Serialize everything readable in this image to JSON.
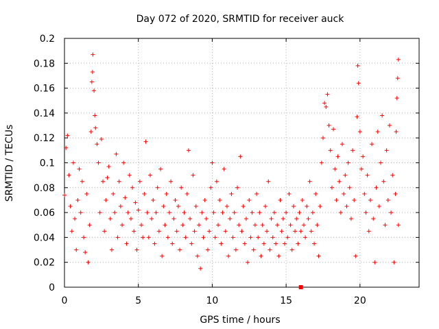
{
  "chart_data": {
    "type": "scatter",
    "title": "Day 072 of 2020, SRMTID for receiver auck",
    "xlabel": "GPS time / hours",
    "ylabel": "SRMTID / TECUs",
    "xlim": [
      0,
      24
    ],
    "ylim": [
      0,
      0.2
    ],
    "grid": true,
    "x_ticks": [
      0,
      5,
      10,
      15,
      20
    ],
    "x_tick_labels": [
      "0",
      "5",
      "10",
      "15",
      "20"
    ],
    "y_ticks": [
      0,
      0.02,
      0.04,
      0.06,
      0.08,
      0.1,
      0.12,
      0.14,
      0.16,
      0.18,
      0.2
    ],
    "y_tick_labels": [
      "0",
      "0.02",
      "0.04",
      "0.06",
      "0.08",
      "0.1",
      "0.12",
      "0.14",
      "0.16",
      "0.18",
      "0.2"
    ],
    "marker": "plus",
    "color": "#ff0000",
    "series": [
      {
        "name": "SRMTID",
        "points": [
          [
            0.0,
            0.074
          ],
          [
            0.1,
            0.112
          ],
          [
            0.2,
            0.122
          ],
          [
            0.3,
            0.09
          ],
          [
            0.4,
            0.065
          ],
          [
            0.5,
            0.045
          ],
          [
            0.6,
            0.1
          ],
          [
            0.7,
            0.055
          ],
          [
            0.8,
            0.03
          ],
          [
            0.9,
            0.07
          ],
          [
            1.0,
            0.095
          ],
          [
            1.1,
            0.06
          ],
          [
            1.2,
            0.085
          ],
          [
            1.3,
            0.04
          ],
          [
            1.4,
            0.028
          ],
          [
            1.5,
            0.075
          ],
          [
            1.6,
            0.02
          ],
          [
            1.7,
            0.05
          ],
          [
            1.8,
            0.125
          ],
          [
            1.85,
            0.165
          ],
          [
            1.9,
            0.173
          ],
          [
            1.92,
            0.187
          ],
          [
            2.0,
            0.158
          ],
          [
            2.05,
            0.138
          ],
          [
            2.1,
            0.128
          ],
          [
            2.2,
            0.115
          ],
          [
            2.3,
            0.1
          ],
          [
            2.4,
            0.06
          ],
          [
            2.5,
            0.119
          ],
          [
            2.6,
            0.085
          ],
          [
            2.7,
            0.045
          ],
          [
            2.8,
            0.07
          ],
          [
            2.9,
            0.088
          ],
          [
            3.0,
            0.097
          ],
          [
            3.1,
            0.055
          ],
          [
            3.2,
            0.03
          ],
          [
            3.3,
            0.075
          ],
          [
            3.4,
            0.06
          ],
          [
            3.5,
            0.107
          ],
          [
            3.6,
            0.04
          ],
          [
            3.7,
            0.085
          ],
          [
            3.8,
            0.065
          ],
          [
            3.9,
            0.05
          ],
          [
            4.0,
            0.1
          ],
          [
            4.1,
            0.072
          ],
          [
            4.2,
            0.035
          ],
          [
            4.3,
            0.06
          ],
          [
            4.4,
            0.09
          ],
          [
            4.5,
            0.055
          ],
          [
            4.6,
            0.08
          ],
          [
            4.7,
            0.045
          ],
          [
            4.8,
            0.068
          ],
          [
            4.9,
            0.03
          ],
          [
            5.0,
            0.062
          ],
          [
            5.1,
            0.085
          ],
          [
            5.2,
            0.05
          ],
          [
            5.3,
            0.04
          ],
          [
            5.4,
            0.075
          ],
          [
            5.5,
            0.117
          ],
          [
            5.6,
            0.06
          ],
          [
            5.7,
            0.04
          ],
          [
            5.8,
            0.09
          ],
          [
            5.9,
            0.055
          ],
          [
            6.0,
            0.07
          ],
          [
            6.1,
            0.035
          ],
          [
            6.2,
            0.06
          ],
          [
            6.3,
            0.08
          ],
          [
            6.4,
            0.045
          ],
          [
            6.5,
            0.095
          ],
          [
            6.6,
            0.025
          ],
          [
            6.7,
            0.065
          ],
          [
            6.8,
            0.05
          ],
          [
            6.9,
            0.075
          ],
          [
            7.0,
            0.04
          ],
          [
            7.1,
            0.06
          ],
          [
            7.2,
            0.085
          ],
          [
            7.3,
            0.035
          ],
          [
            7.4,
            0.055
          ],
          [
            7.5,
            0.07
          ],
          [
            7.6,
            0.045
          ],
          [
            7.7,
            0.065
          ],
          [
            7.8,
            0.03
          ],
          [
            7.9,
            0.08
          ],
          [
            8.0,
            0.05
          ],
          [
            8.1,
            0.06
          ],
          [
            8.2,
            0.04
          ],
          [
            8.3,
            0.075
          ],
          [
            8.4,
            0.11
          ],
          [
            8.5,
            0.055
          ],
          [
            8.6,
            0.035
          ],
          [
            8.7,
            0.09
          ],
          [
            8.8,
            0.045
          ],
          [
            8.9,
            0.065
          ],
          [
            9.0,
            0.025
          ],
          [
            9.1,
            0.05
          ],
          [
            9.2,
            0.015
          ],
          [
            9.3,
            0.06
          ],
          [
            9.4,
            0.04
          ],
          [
            9.5,
            0.07
          ],
          [
            9.6,
            0.055
          ],
          [
            9.7,
            0.03
          ],
          [
            9.8,
            0.045
          ],
          [
            9.9,
            0.08
          ],
          [
            10.0,
            0.1
          ],
          [
            10.1,
            0.06
          ],
          [
            10.2,
            0.04
          ],
          [
            10.3,
            0.085
          ],
          [
            10.4,
            0.05
          ],
          [
            10.5,
            0.07
          ],
          [
            10.6,
            0.035
          ],
          [
            10.7,
            0.06
          ],
          [
            10.8,
            0.095
          ],
          [
            10.9,
            0.045
          ],
          [
            11.0,
            0.065
          ],
          [
            11.1,
            0.025
          ],
          [
            11.2,
            0.055
          ],
          [
            11.3,
            0.075
          ],
          [
            11.4,
            0.04
          ],
          [
            11.5,
            0.06
          ],
          [
            11.6,
            0.03
          ],
          [
            11.7,
            0.08
          ],
          [
            11.8,
            0.05
          ],
          [
            11.9,
            0.105
          ],
          [
            12.0,
            0.045
          ],
          [
            12.1,
            0.065
          ],
          [
            12.2,
            0.035
          ],
          [
            12.3,
            0.055
          ],
          [
            12.4,
            0.02
          ],
          [
            12.5,
            0.07
          ],
          [
            12.6,
            0.04
          ],
          [
            12.7,
            0.06
          ],
          [
            12.8,
            0.03
          ],
          [
            12.9,
            0.05
          ],
          [
            13.0,
            0.075
          ],
          [
            13.1,
            0.04
          ],
          [
            13.2,
            0.06
          ],
          [
            13.3,
            0.025
          ],
          [
            13.4,
            0.05
          ],
          [
            13.5,
            0.035
          ],
          [
            13.6,
            0.065
          ],
          [
            13.7,
            0.045
          ],
          [
            13.8,
            0.085
          ],
          [
            13.9,
            0.03
          ],
          [
            14.0,
            0.055
          ],
          [
            14.1,
            0.04
          ],
          [
            14.2,
            0.06
          ],
          [
            14.3,
            0.035
          ],
          [
            14.4,
            0.05
          ],
          [
            14.5,
            0.025
          ],
          [
            14.6,
            0.07
          ],
          [
            14.7,
            0.045
          ],
          [
            14.8,
            0.055
          ],
          [
            14.9,
            0.035
          ],
          [
            15.0,
            0.06
          ],
          [
            15.1,
            0.04
          ],
          [
            15.2,
            0.075
          ],
          [
            15.3,
            0.05
          ],
          [
            15.4,
            0.03
          ],
          [
            15.5,
            0.065
          ],
          [
            15.6,
            0.045
          ],
          [
            15.7,
            0.055
          ],
          [
            15.8,
            0.035
          ],
          [
            15.9,
            0.06
          ],
          [
            16.0,
            0.045
          ],
          [
            16.1,
            0.07
          ],
          [
            16.2,
            0.05
          ],
          [
            16.3,
            0.04
          ],
          [
            16.4,
            0.065
          ],
          [
            16.5,
            0.055
          ],
          [
            16.6,
            0.085
          ],
          [
            16.7,
            0.045
          ],
          [
            16.8,
            0.06
          ],
          [
            16.9,
            0.035
          ],
          [
            17.0,
            0.075
          ],
          [
            17.1,
            0.05
          ],
          [
            17.2,
            0.025
          ],
          [
            17.3,
            0.065
          ],
          [
            17.4,
            0.1
          ],
          [
            17.5,
            0.12
          ],
          [
            17.6,
            0.148
          ],
          [
            17.7,
            0.145
          ],
          [
            17.8,
            0.155
          ],
          [
            17.9,
            0.13
          ],
          [
            18.0,
            0.11
          ],
          [
            18.1,
            0.08
          ],
          [
            18.2,
            0.127
          ],
          [
            18.3,
            0.095
          ],
          [
            18.4,
            0.07
          ],
          [
            18.5,
            0.105
          ],
          [
            18.6,
            0.085
          ],
          [
            18.7,
            0.06
          ],
          [
            18.8,
            0.115
          ],
          [
            18.9,
            0.075
          ],
          [
            19.0,
            0.09
          ],
          [
            19.1,
            0.065
          ],
          [
            19.2,
            0.1
          ],
          [
            19.3,
            0.08
          ],
          [
            19.4,
            0.055
          ],
          [
            19.5,
            0.11
          ],
          [
            19.6,
            0.07
          ],
          [
            19.7,
            0.025
          ],
          [
            19.8,
            0.137
          ],
          [
            19.85,
            0.178
          ],
          [
            19.9,
            0.164
          ],
          [
            20.0,
            0.125
          ],
          [
            20.1,
            0.095
          ],
          [
            20.2,
            0.105
          ],
          [
            20.3,
            0.075
          ],
          [
            20.4,
            0.06
          ],
          [
            20.5,
            0.09
          ],
          [
            20.6,
            0.045
          ],
          [
            20.7,
            0.07
          ],
          [
            20.8,
            0.115
          ],
          [
            20.9,
            0.055
          ],
          [
            21.0,
            0.02
          ],
          [
            21.1,
            0.08
          ],
          [
            21.2,
            0.125
          ],
          [
            21.3,
            0.065
          ],
          [
            21.4,
            0.1
          ],
          [
            21.5,
            0.138
          ],
          [
            21.6,
            0.085
          ],
          [
            21.7,
            0.05
          ],
          [
            21.8,
            0.11
          ],
          [
            21.9,
            0.07
          ],
          [
            22.0,
            0.13
          ],
          [
            22.1,
            0.06
          ],
          [
            22.2,
            0.09
          ],
          [
            22.3,
            0.02
          ],
          [
            22.4,
            0.075
          ],
          [
            22.45,
            0.125
          ],
          [
            22.5,
            0.152
          ],
          [
            22.55,
            0.168
          ],
          [
            22.6,
            0.183
          ],
          [
            22.6,
            0.05
          ]
        ]
      }
    ],
    "outlier_marker": {
      "x": 16.0,
      "y": 0.0,
      "shape": "square"
    }
  }
}
